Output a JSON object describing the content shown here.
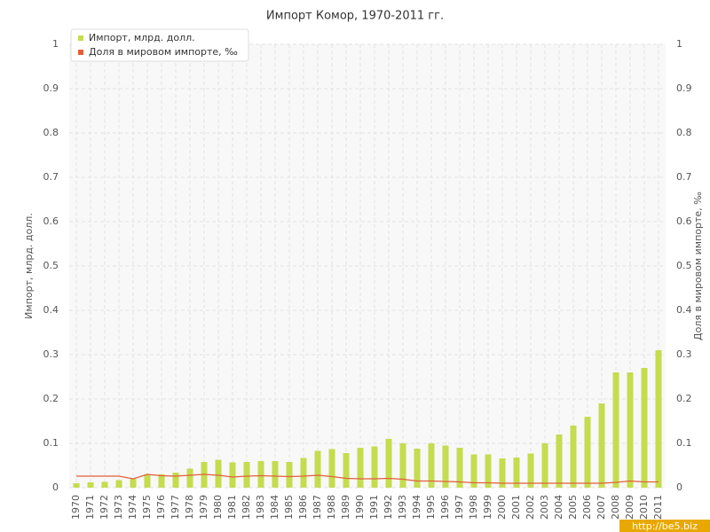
{
  "chart_data": {
    "type": "bar",
    "title": "Импорт Комор, 1970-2011 гг.",
    "y_label": "Импорт, млрд. долл.",
    "y2_label": "Доля в мировом импорте, ‰",
    "watermark": "http://be5.biz",
    "categories": [
      "1970",
      "1971",
      "1972",
      "1973",
      "1974",
      "1975",
      "1976",
      "1977",
      "1978",
      "1979",
      "1980",
      "1981",
      "1982",
      "1983",
      "1984",
      "1985",
      "1986",
      "1987",
      "1988",
      "1989",
      "1990",
      "1991",
      "1992",
      "1993",
      "1994",
      "1995",
      "1996",
      "1997",
      "1998",
      "1999",
      "2000",
      "2001",
      "2002",
      "2003",
      "2004",
      "2005",
      "2006",
      "2007",
      "2008",
      "2009",
      "2010",
      "2011"
    ],
    "series": [
      {
        "name": "Импорт, млрд. долл.",
        "type": "bar",
        "color": "#c5dc4e",
        "values": [
          0.01,
          0.012,
          0.013,
          0.017,
          0.02,
          0.03,
          0.03,
          0.034,
          0.043,
          0.058,
          0.063,
          0.057,
          0.058,
          0.06,
          0.06,
          0.058,
          0.067,
          0.083,
          0.087,
          0.078,
          0.09,
          0.093,
          0.11,
          0.1,
          0.088,
          0.1,
          0.095,
          0.09,
          0.075,
          0.075,
          0.066,
          0.068,
          0.077,
          0.1,
          0.12,
          0.14,
          0.16,
          0.19,
          0.26,
          0.26,
          0.27,
          0.31
        ]
      },
      {
        "name": "Доля в мировом импорте, ‰",
        "type": "line",
        "axis": "y2",
        "color": "#e0603a",
        "values": [
          0.026,
          0.026,
          0.026,
          0.026,
          0.02,
          0.03,
          0.027,
          0.026,
          0.028,
          0.03,
          0.028,
          0.024,
          0.026,
          0.027,
          0.026,
          0.025,
          0.026,
          0.028,
          0.025,
          0.021,
          0.02,
          0.02,
          0.021,
          0.019,
          0.015,
          0.015,
          0.014,
          0.013,
          0.011,
          0.011,
          0.01,
          0.01,
          0.01,
          0.01,
          0.01,
          0.01,
          0.01,
          0.01,
          0.012,
          0.015,
          0.013,
          0.013
        ]
      }
    ],
    "ylim": [
      0,
      1
    ],
    "yticks": [
      0,
      0.1,
      0.2,
      0.3,
      0.4,
      0.5,
      0.6,
      0.7,
      0.8,
      0.9,
      1
    ],
    "y2lim": [
      0,
      1
    ],
    "y2ticks": [
      0,
      0.1,
      0.2,
      0.3,
      0.4,
      0.5,
      0.6,
      0.7,
      0.8,
      0.9,
      1
    ],
    "grid": true,
    "legend": "top-left"
  }
}
